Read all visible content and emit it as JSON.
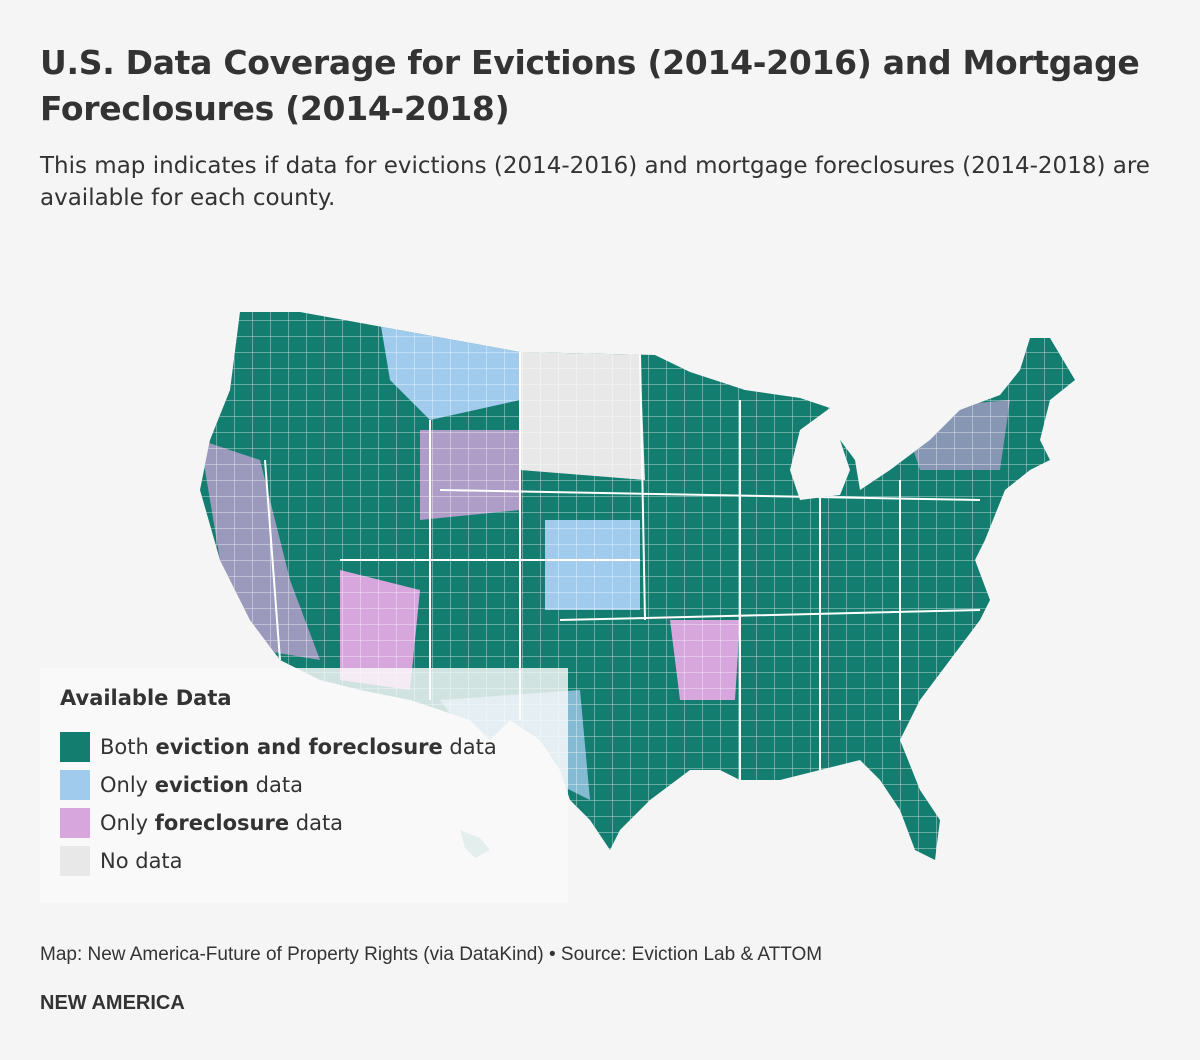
{
  "title": "U.S. Data Coverage for Evictions (2014-2016) and Mortgage Foreclosures (2014-2018)",
  "subtitle": "This map indicates if data for evictions (2014-2016) and mortgage foreclosures (2014-2018) are available for each county.",
  "legend": {
    "title": "Available Data",
    "items": [
      {
        "pre": "Both ",
        "bold": "eviction and foreclosure",
        "post": " data",
        "color": "#137d70"
      },
      {
        "pre": "Only ",
        "bold": "eviction",
        "post": " data",
        "color": "#a1cbec"
      },
      {
        "pre": "Only ",
        "bold": "foreclosure",
        "post": " data",
        "color": "#d6a6dd"
      },
      {
        "pre": "No data",
        "bold": "",
        "post": "",
        "color": "#e8e8e8"
      }
    ]
  },
  "footer": {
    "credit": "Map: New America-Future of Property Rights (via DataKind) • Source: Eviction Lab & ATTOM",
    "brand": "NEW AMERICA"
  }
}
